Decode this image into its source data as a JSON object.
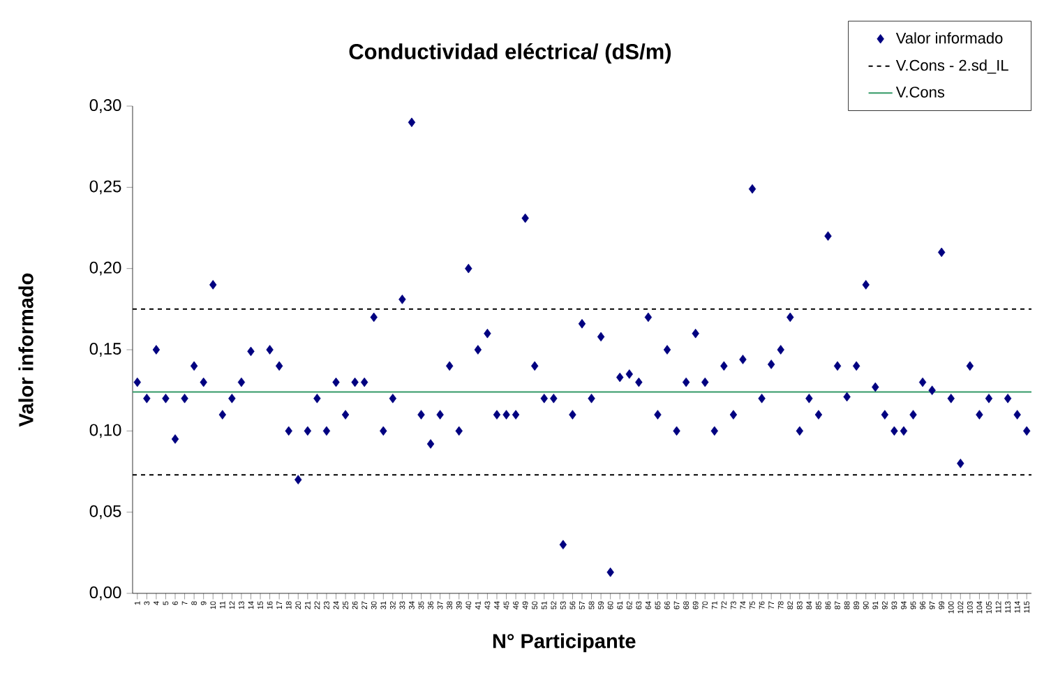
{
  "chart_data": {
    "type": "scatter",
    "title": "Conductividad eléctrica/ (dS/m)",
    "xlabel": "N° Participante",
    "ylabel": "Valor informado",
    "categories": [
      "1",
      "3",
      "4",
      "5",
      "6",
      "7",
      "8",
      "9",
      "10",
      "11",
      "12",
      "13",
      "14",
      "15",
      "16",
      "17",
      "18",
      "20",
      "21",
      "22",
      "23",
      "24",
      "25",
      "26",
      "27",
      "30",
      "31",
      "32",
      "33",
      "34",
      "35",
      "36",
      "37",
      "38",
      "39",
      "40",
      "41",
      "43",
      "44",
      "45",
      "46",
      "49",
      "50",
      "51",
      "52",
      "53",
      "56",
      "57",
      "58",
      "59",
      "60",
      "61",
      "62",
      "63",
      "64",
      "65",
      "66",
      "67",
      "68",
      "69",
      "70",
      "71",
      "72",
      "73",
      "74",
      "75",
      "76",
      "77",
      "78",
      "82",
      "83",
      "84",
      "85",
      "86",
      "87",
      "88",
      "89",
      "90",
      "91",
      "92",
      "93",
      "94",
      "95",
      "96",
      "97",
      "99",
      "100",
      "102",
      "103",
      "104",
      "105",
      "112",
      "113",
      "114",
      "115"
    ],
    "series": [
      {
        "name": "Valor informado",
        "color": "#000080",
        "values": [
          0.13,
          0.12,
          0.15,
          0.12,
          0.095,
          0.12,
          0.14,
          0.13,
          0.19,
          0.11,
          0.12,
          0.13,
          0.149,
          null,
          0.15,
          0.14,
          0.1,
          0.07,
          0.1,
          0.12,
          0.1,
          0.13,
          0.11,
          0.13,
          0.13,
          0.17,
          0.1,
          0.12,
          0.181,
          0.29,
          0.11,
          0.092,
          0.11,
          0.14,
          0.1,
          0.2,
          0.15,
          0.16,
          0.11,
          0.11,
          0.11,
          0.231,
          0.14,
          0.12,
          0.12,
          0.03,
          0.11,
          0.166,
          0.12,
          0.158,
          0.013,
          0.133,
          0.135,
          0.13,
          0.17,
          0.11,
          0.15,
          0.1,
          0.13,
          0.16,
          0.13,
          0.1,
          0.14,
          0.11,
          0.144,
          0.249,
          0.12,
          0.141,
          0.15,
          0.17,
          0.1,
          0.12,
          0.11,
          0.22,
          0.14,
          0.121,
          0.14,
          0.19,
          0.127,
          0.11,
          0.1,
          0.1,
          0.11,
          0.13,
          0.125,
          0.21,
          0.12,
          0.08,
          0.14,
          0.11,
          0.12,
          null,
          0.12,
          0.11,
          0.1
        ]
      }
    ],
    "marker": "diamond",
    "ylim": [
      0,
      0.3
    ],
    "yticks": [
      {
        "value": 0,
        "label": "0,00"
      },
      {
        "value": 0.05,
        "label": "0,05"
      },
      {
        "value": 0.1,
        "label": "0,10"
      },
      {
        "value": 0.15,
        "label": "0,15"
      },
      {
        "value": 0.2,
        "label": "0,20"
      },
      {
        "value": 0.25,
        "label": "0,25"
      },
      {
        "value": 0.3,
        "label": "0,30"
      }
    ],
    "ref_lines": [
      {
        "axis": "y",
        "value": 0.175,
        "label": "V.Cons - 2.sd_IL",
        "color": "#000000",
        "line_style": "dashed"
      },
      {
        "axis": "y",
        "value": 0.073,
        "color": "#000000",
        "line_style": "dashed"
      },
      {
        "axis": "y",
        "value": 0.124,
        "label": "V.Cons",
        "color": "#339966",
        "line_style": "solid"
      }
    ],
    "grid": false,
    "legend": "top right"
  }
}
